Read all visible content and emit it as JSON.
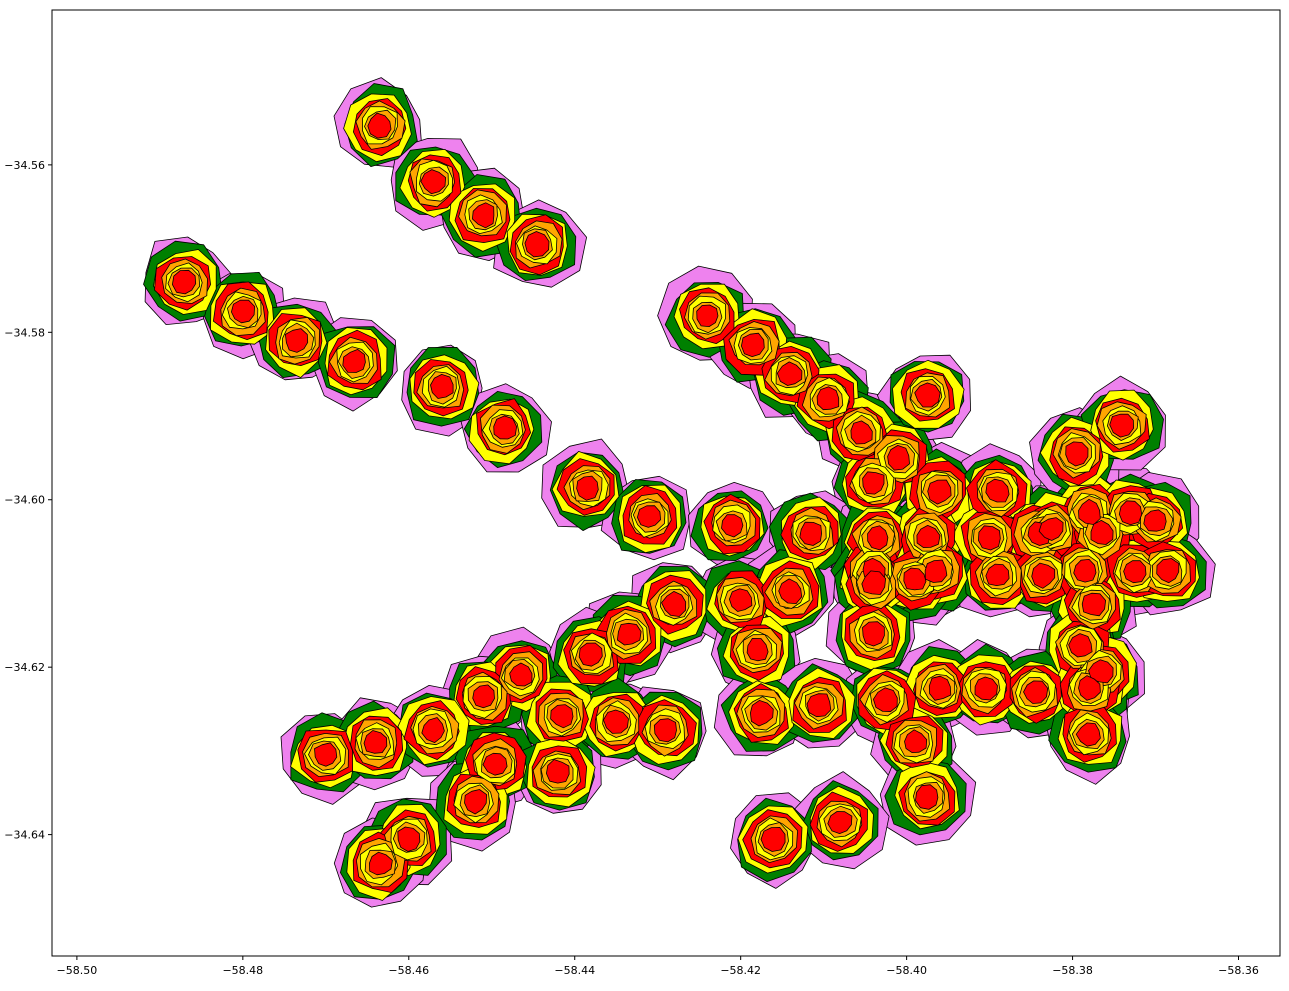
{
  "chart_data": {
    "type": "map",
    "description_of_layers": "buffered isochrone polygons around points, drawn outer to inner",
    "layer_colors": {
      "violet": "#ee82ee",
      "green": "#008000",
      "yellow": "#ffff00",
      "red": "#ff0000",
      "orange": "#ffa500",
      "core": "#ff0000"
    },
    "xlim": [
      -58.503,
      -58.355
    ],
    "ylim": [
      -34.6545,
      -34.5415
    ],
    "x_ticks": [
      {
        "value": -58.5,
        "label": "−58.50"
      },
      {
        "value": -58.48,
        "label": "−58.48"
      },
      {
        "value": -58.46,
        "label": "−58.46"
      },
      {
        "value": -58.44,
        "label": "−58.44"
      },
      {
        "value": -58.42,
        "label": "−58.42"
      },
      {
        "value": -58.4,
        "label": "−58.40"
      },
      {
        "value": -58.38,
        "label": "−58.38"
      },
      {
        "value": -58.36,
        "label": "−58.36"
      }
    ],
    "y_ticks": [
      {
        "value": -34.56,
        "label": "−34.56"
      },
      {
        "value": -34.58,
        "label": "−34.58"
      },
      {
        "value": -34.6,
        "label": "−34.60"
      },
      {
        "value": -34.62,
        "label": "−34.62"
      },
      {
        "value": -34.64,
        "label": "−34.64"
      }
    ],
    "points": [
      [
        -58.4635,
        -34.5553
      ],
      [
        -58.457,
        -34.562
      ],
      [
        -58.451,
        -34.566
      ],
      [
        -58.4445,
        -34.5695
      ],
      [
        -58.487,
        -34.574
      ],
      [
        -58.48,
        -34.5775
      ],
      [
        -58.4735,
        -34.581
      ],
      [
        -58.4665,
        -34.5835
      ],
      [
        -58.456,
        -34.5865
      ],
      [
        -58.4485,
        -34.5915
      ],
      [
        -58.4385,
        -34.5985
      ],
      [
        -58.431,
        -34.602
      ],
      [
        -58.424,
        -34.578
      ],
      [
        -58.4185,
        -34.5815
      ],
      [
        -58.414,
        -34.585
      ],
      [
        -58.4095,
        -34.588
      ],
      [
        -58.4055,
        -34.592
      ],
      [
        -58.401,
        -34.595
      ],
      [
        -58.3975,
        -34.5875
      ],
      [
        -58.404,
        -34.598
      ],
      [
        -58.396,
        -34.599
      ],
      [
        -58.389,
        -34.599
      ],
      [
        -58.421,
        -34.603
      ],
      [
        -58.4115,
        -34.604
      ],
      [
        -58.4035,
        -34.6045
      ],
      [
        -58.3975,
        -34.6045
      ],
      [
        -58.39,
        -34.6045
      ],
      [
        -58.384,
        -34.604
      ],
      [
        -58.378,
        -34.6015
      ],
      [
        -58.373,
        -34.6015
      ],
      [
        -58.37,
        -34.6025
      ],
      [
        -58.3825,
        -34.6035
      ],
      [
        -58.3765,
        -34.604
      ],
      [
        -58.404,
        -34.6085
      ],
      [
        -58.3965,
        -34.6085
      ],
      [
        -58.389,
        -34.609
      ],
      [
        -58.3835,
        -34.609
      ],
      [
        -58.3785,
        -34.6085
      ],
      [
        -58.3725,
        -34.6085
      ],
      [
        -58.3685,
        -34.6085
      ],
      [
        -58.399,
        -34.6095
      ],
      [
        -58.404,
        -34.61
      ],
      [
        -58.3795,
        -34.5945
      ],
      [
        -58.374,
        -34.591
      ],
      [
        -58.428,
        -34.6125
      ],
      [
        -58.42,
        -34.612
      ],
      [
        -58.414,
        -34.611
      ],
      [
        -58.4335,
        -34.616
      ],
      [
        -58.404,
        -34.616
      ],
      [
        -58.3775,
        -34.6125
      ],
      [
        -58.379,
        -34.6175
      ],
      [
        -58.4465,
        -34.621
      ],
      [
        -58.438,
        -34.6185
      ],
      [
        -58.418,
        -34.618
      ],
      [
        -58.3765,
        -34.6205
      ],
      [
        -58.451,
        -34.6235
      ],
      [
        -58.4415,
        -34.6258
      ],
      [
        -58.435,
        -34.6265
      ],
      [
        -58.429,
        -34.6275
      ],
      [
        -58.4175,
        -34.6255
      ],
      [
        -58.4105,
        -34.6245
      ],
      [
        -58.4025,
        -34.624
      ],
      [
        -58.396,
        -34.6225
      ],
      [
        -58.3905,
        -34.6225
      ],
      [
        -58.3845,
        -34.623
      ],
      [
        -58.378,
        -34.6225
      ],
      [
        -58.47,
        -34.6305
      ],
      [
        -58.464,
        -34.629
      ],
      [
        -58.457,
        -34.6275
      ],
      [
        -58.4495,
        -34.6315
      ],
      [
        -58.442,
        -34.6325
      ],
      [
        -58.399,
        -34.629
      ],
      [
        -58.378,
        -34.628
      ],
      [
        -58.452,
        -34.636
      ],
      [
        -58.3975,
        -34.6355
      ],
      [
        -58.46,
        -34.6405
      ],
      [
        -58.4635,
        -34.6435
      ],
      [
        -58.416,
        -34.6405
      ],
      [
        -58.408,
        -34.6385
      ]
    ]
  }
}
